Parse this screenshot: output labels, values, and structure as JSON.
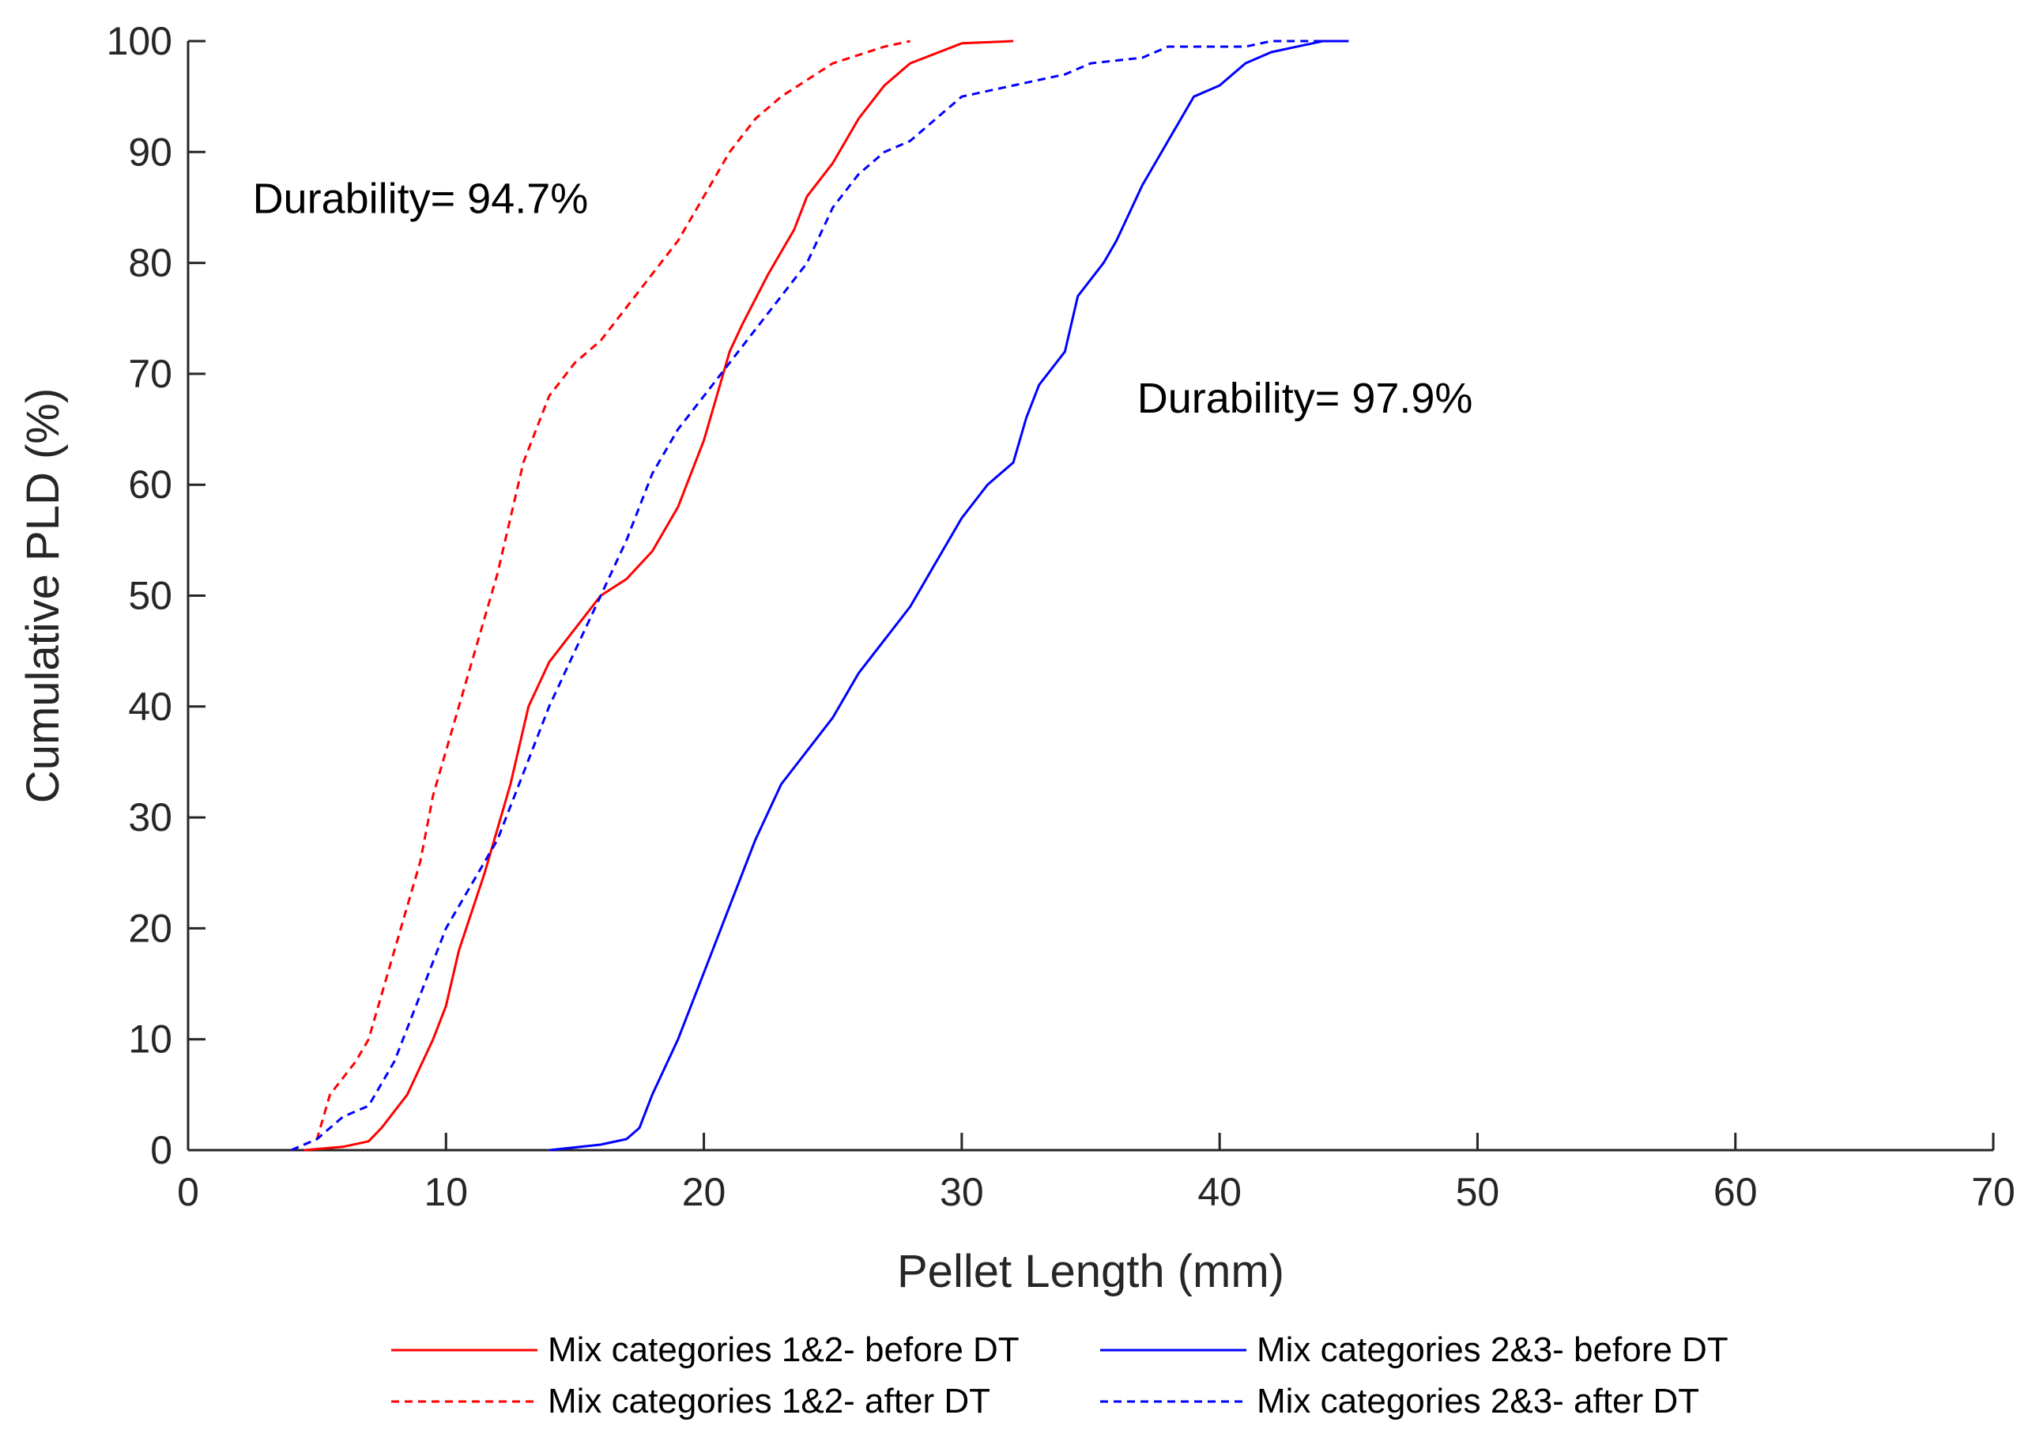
{
  "chart_data": {
    "type": "line",
    "title": "",
    "xlabel": "Pellet Length (mm)",
    "ylabel": "Cumulative PLD (%)",
    "xlim": [
      0,
      70
    ],
    "ylim": [
      0,
      100
    ],
    "xticks": [
      0,
      10,
      20,
      30,
      40,
      50,
      60,
      70
    ],
    "yticks": [
      0,
      10,
      20,
      30,
      40,
      50,
      60,
      70,
      80,
      90,
      100
    ],
    "grid": false,
    "legend_position": "bottom",
    "annotations": [
      {
        "text": "Durability= 94.7%",
        "x": 2.5,
        "y": 84.5
      },
      {
        "text": "Durability= 97.9%",
        "x": 36.8,
        "y": 66.5
      }
    ],
    "series": [
      {
        "name": "Mix categories 1&2- before DT",
        "color": "#ff0000",
        "style": "solid",
        "points": [
          [
            4.5,
            0
          ],
          [
            6,
            0.3
          ],
          [
            7,
            0.8
          ],
          [
            7.5,
            2
          ],
          [
            8.5,
            5
          ],
          [
            9.5,
            10
          ],
          [
            10,
            13
          ],
          [
            10.5,
            18
          ],
          [
            11.5,
            25
          ],
          [
            12.5,
            33
          ],
          [
            13.2,
            40
          ],
          [
            14,
            44
          ],
          [
            15,
            47
          ],
          [
            16,
            50
          ],
          [
            17,
            51.5
          ],
          [
            18,
            54
          ],
          [
            19,
            58
          ],
          [
            20,
            64
          ],
          [
            20.5,
            68
          ],
          [
            21,
            72
          ],
          [
            21.5,
            74.5
          ],
          [
            22.5,
            79
          ],
          [
            23.5,
            83
          ],
          [
            24,
            86
          ],
          [
            25,
            89
          ],
          [
            26,
            93
          ],
          [
            27,
            96
          ],
          [
            28,
            98
          ],
          [
            30,
            99.8
          ],
          [
            32,
            100
          ]
        ]
      },
      {
        "name": "Mix categories 1&2- after DT",
        "color": "#ff0000",
        "style": "dashed",
        "points": [
          [
            4,
            0
          ],
          [
            5,
            1
          ],
          [
            5.5,
            5
          ],
          [
            6.5,
            8
          ],
          [
            7,
            10
          ],
          [
            7.5,
            14
          ],
          [
            8,
            18
          ],
          [
            9,
            26
          ],
          [
            9.5,
            32
          ],
          [
            10,
            36
          ],
          [
            11,
            44
          ],
          [
            12,
            52
          ],
          [
            13,
            62
          ],
          [
            14,
            68
          ],
          [
            15,
            71
          ],
          [
            16,
            73
          ],
          [
            17,
            76
          ],
          [
            18,
            79
          ],
          [
            19,
            82
          ],
          [
            20,
            86
          ],
          [
            21,
            90
          ],
          [
            22,
            93
          ],
          [
            23,
            95
          ],
          [
            24,
            96.5
          ],
          [
            25,
            98
          ],
          [
            27,
            99.5
          ],
          [
            28,
            100
          ]
        ]
      },
      {
        "name": "Mix categories 2&3- before DT",
        "color": "#0000ff",
        "style": "solid",
        "points": [
          [
            14,
            0
          ],
          [
            16,
            0.5
          ],
          [
            17,
            1
          ],
          [
            17.5,
            2
          ],
          [
            18,
            5
          ],
          [
            19,
            10
          ],
          [
            20,
            16
          ],
          [
            21,
            22
          ],
          [
            22,
            28
          ],
          [
            23,
            33
          ],
          [
            24,
            36
          ],
          [
            25,
            39
          ],
          [
            26,
            43
          ],
          [
            27,
            46
          ],
          [
            28,
            49
          ],
          [
            29,
            53
          ],
          [
            30,
            57
          ],
          [
            31,
            60
          ],
          [
            32,
            62
          ],
          [
            32.5,
            66
          ],
          [
            33,
            69
          ],
          [
            34,
            72
          ],
          [
            34.5,
            77
          ],
          [
            35.5,
            80
          ],
          [
            36,
            82
          ],
          [
            37,
            87
          ],
          [
            38,
            91
          ],
          [
            39,
            95
          ],
          [
            40,
            96
          ],
          [
            41,
            98
          ],
          [
            42,
            99
          ],
          [
            44,
            100
          ],
          [
            45,
            100
          ]
        ]
      },
      {
        "name": "Mix categories 2&3- after DT",
        "color": "#0000ff",
        "style": "dashed",
        "points": [
          [
            4,
            0
          ],
          [
            5,
            1
          ],
          [
            6,
            3
          ],
          [
            7,
            4
          ],
          [
            8,
            8
          ],
          [
            9,
            14
          ],
          [
            10,
            20
          ],
          [
            11,
            24
          ],
          [
            12,
            28
          ],
          [
            13,
            34
          ],
          [
            14,
            40
          ],
          [
            15,
            45
          ],
          [
            16,
            50
          ],
          [
            17,
            55
          ],
          [
            18,
            61
          ],
          [
            19,
            65
          ],
          [
            20,
            68
          ],
          [
            21,
            71
          ],
          [
            22,
            74
          ],
          [
            23,
            77
          ],
          [
            24,
            80
          ],
          [
            25,
            85
          ],
          [
            26,
            88
          ],
          [
            27,
            90
          ],
          [
            28,
            91
          ],
          [
            29,
            93
          ],
          [
            30,
            95
          ],
          [
            32,
            96
          ],
          [
            34,
            97
          ],
          [
            35,
            98
          ],
          [
            37,
            98.5
          ],
          [
            38,
            99.5
          ],
          [
            41,
            99.5
          ],
          [
            42,
            100
          ],
          [
            45,
            100
          ]
        ]
      }
    ]
  }
}
